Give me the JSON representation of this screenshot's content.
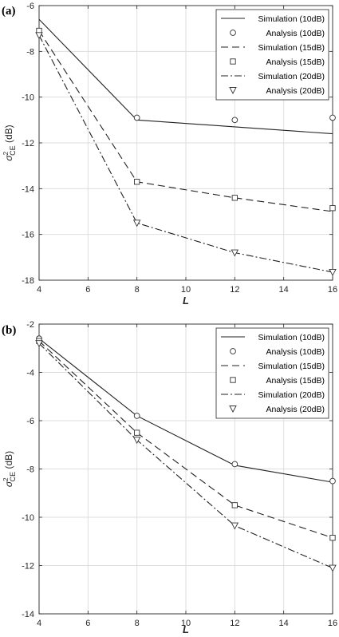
{
  "chart_data": [
    {
      "type": "line",
      "panel_label": "(a)",
      "xlabel": "L",
      "ylabel": "σ²_CE (dB)",
      "ylabel_main": "σ",
      "ylabel_sup": "2",
      "ylabel_sub": "CE",
      "ylabel_unit": " (dB)",
      "xlim": [
        4,
        16
      ],
      "ylim": [
        -18,
        -6
      ],
      "xticks": [
        4,
        6,
        8,
        10,
        12,
        14,
        16
      ],
      "yticks": [
        -18,
        -16,
        -14,
        -12,
        -10,
        -8,
        -6
      ],
      "xtick_labels": [
        "4",
        "6",
        "8",
        "10",
        "12",
        "14",
        "16"
      ],
      "ytick_labels": [
        "-18",
        "-16",
        "-14",
        "-12",
        "-10",
        "-8",
        "-6"
      ],
      "grid": true,
      "legend_position": "top-right",
      "series": [
        {
          "name": "Simulation (10dB)",
          "style": "solid",
          "x": [
            4,
            8,
            12,
            16
          ],
          "y": [
            -6.6,
            -11.0,
            -11.3,
            -11.6
          ]
        },
        {
          "name": "Analysis (10dB)",
          "marker": "circle",
          "x": [
            8,
            12,
            16
          ],
          "y": [
            -10.9,
            -11.0,
            -10.9
          ]
        },
        {
          "name": "Simulation (15dB)",
          "style": "dashed",
          "x": [
            4,
            8,
            12,
            16
          ],
          "y": [
            -7.1,
            -13.7,
            -14.4,
            -15.0
          ]
        },
        {
          "name": "Analysis (15dB)",
          "marker": "square",
          "x": [
            4,
            8,
            12,
            16
          ],
          "y": [
            -7.1,
            -13.7,
            -14.4,
            -14.85
          ]
        },
        {
          "name": "Simulation (20dB)",
          "style": "dashdot",
          "x": [
            4,
            8,
            12,
            16
          ],
          "y": [
            -7.3,
            -15.5,
            -16.8,
            -17.65
          ]
        },
        {
          "name": "Analysis (20dB)",
          "marker": "triangle-down",
          "x": [
            4,
            8,
            12,
            16
          ],
          "y": [
            -7.3,
            -15.5,
            -16.8,
            -17.65
          ]
        }
      ]
    },
    {
      "type": "line",
      "panel_label": "(b)",
      "xlabel": "L",
      "ylabel": "σ²_CE (dB)",
      "ylabel_main": "σ",
      "ylabel_sup": "2",
      "ylabel_sub": "CE",
      "ylabel_unit": " (dB)",
      "xlim": [
        4,
        16
      ],
      "ylim": [
        -14,
        -2
      ],
      "xticks": [
        4,
        6,
        8,
        10,
        12,
        14,
        16
      ],
      "yticks": [
        -14,
        -12,
        -10,
        -8,
        -6,
        -4,
        -2
      ],
      "xtick_labels": [
        "4",
        "6",
        "8",
        "10",
        "12",
        "14",
        "16"
      ],
      "ytick_labels": [
        "-14",
        "-12",
        "-10",
        "-8",
        "-6",
        "-4",
        "-2"
      ],
      "grid": true,
      "legend_position": "top-right",
      "series": [
        {
          "name": "Simulation (10dB)",
          "style": "solid",
          "x": [
            4,
            8,
            12,
            16
          ],
          "y": [
            -2.6,
            -5.8,
            -7.85,
            -8.55
          ]
        },
        {
          "name": "Analysis (10dB)",
          "marker": "circle",
          "x": [
            4,
            8,
            12,
            16
          ],
          "y": [
            -2.6,
            -5.8,
            -7.8,
            -8.5
          ]
        },
        {
          "name": "Simulation (15dB)",
          "style": "dashed",
          "x": [
            4,
            8,
            12,
            16
          ],
          "y": [
            -2.7,
            -6.5,
            -9.5,
            -10.85
          ]
        },
        {
          "name": "Analysis (15dB)",
          "marker": "square",
          "x": [
            4,
            8,
            12,
            16
          ],
          "y": [
            -2.7,
            -6.5,
            -9.5,
            -10.85
          ]
        },
        {
          "name": "Simulation (20dB)",
          "style": "dashdot",
          "x": [
            4,
            8,
            12,
            16
          ],
          "y": [
            -2.8,
            -6.8,
            -10.35,
            -12.1
          ]
        },
        {
          "name": "Analysis (20dB)",
          "marker": "triangle-down",
          "x": [
            4,
            8,
            12,
            16
          ],
          "y": [
            -2.8,
            -6.8,
            -10.35,
            -12.1
          ]
        }
      ]
    }
  ]
}
